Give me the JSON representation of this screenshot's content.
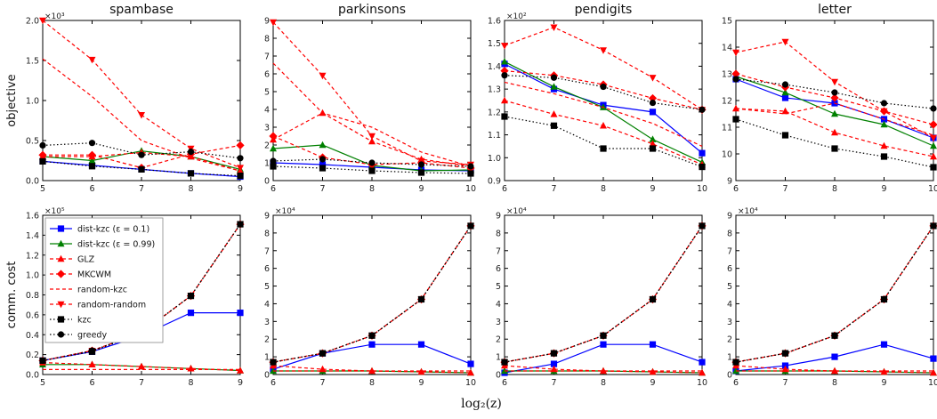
{
  "figure": {
    "xlabel": "log₂(z)",
    "row_labels": [
      "objective",
      "comm. cost"
    ]
  },
  "legend": {
    "entries": [
      {
        "key": "dist_kzc_01",
        "label": "dist-kzc (ε = 0.1)"
      },
      {
        "key": "dist_kzc_099",
        "label": "dist-kzc (ε = 0.99)"
      },
      {
        "key": "glz",
        "label": "GLZ"
      },
      {
        "key": "mkcwm",
        "label": "MKCWM"
      },
      {
        "key": "random_kzc",
        "label": "random-kzc"
      },
      {
        "key": "random_random",
        "label": "random-random"
      },
      {
        "key": "kzc",
        "label": "kzc"
      },
      {
        "key": "greedy",
        "label": "greedy"
      }
    ]
  },
  "series_style": {
    "dist_kzc_01": {
      "color": "#0000ff",
      "dash": "",
      "marker": "square"
    },
    "dist_kzc_099": {
      "color": "#008000",
      "dash": "",
      "marker": "triangle-up"
    },
    "glz": {
      "color": "#ff0000",
      "dash": "4,3",
      "marker": "triangle-up"
    },
    "mkcwm": {
      "color": "#ff0000",
      "dash": "4,3",
      "marker": "diamond"
    },
    "random_kzc": {
      "color": "#ff0000",
      "dash": "4,3",
      "marker": "none"
    },
    "random_random": {
      "color": "#ff0000",
      "dash": "4,3",
      "marker": "triangle-down"
    },
    "kzc": {
      "color": "#000000",
      "dash": "1.5,2.5",
      "marker": "square"
    },
    "greedy": {
      "color": "#000000",
      "dash": "1.5,2.5",
      "marker": "circle"
    }
  },
  "chart_data": [
    {
      "type": "line",
      "title": "spambase",
      "ylabel": "objective",
      "multiplier": "×10³",
      "x": [
        5,
        6,
        7,
        8,
        9
      ],
      "xlim": [
        5,
        9
      ],
      "xticks": [
        "5",
        "6",
        "7",
        "8",
        "9"
      ],
      "ylim": [
        0,
        2.0
      ],
      "yticks": [
        "0.0",
        "0.5",
        "1.0",
        "1.5",
        "2.0"
      ],
      "series": [
        {
          "key": "dist_kzc_01",
          "values": [
            0.24,
            0.19,
            0.14,
            0.09,
            0.05
          ]
        },
        {
          "key": "dist_kzc_099",
          "values": [
            0.3,
            0.25,
            0.37,
            0.3,
            0.14
          ]
        },
        {
          "key": "glz",
          "values": [
            0.3,
            0.3,
            0.35,
            0.3,
            0.12
          ]
        },
        {
          "key": "mkcwm",
          "values": [
            0.32,
            0.32,
            0.16,
            0.33,
            0.44
          ]
        },
        {
          "key": "random_kzc",
          "values": [
            1.52,
            1.05,
            0.5,
            0.28,
            0.12
          ]
        },
        {
          "key": "random_random",
          "values": [
            2.0,
            1.51,
            0.82,
            0.4,
            0.16
          ]
        },
        {
          "key": "kzc",
          "values": [
            0.24,
            0.18,
            0.14,
            0.09,
            0.06
          ]
        },
        {
          "key": "greedy",
          "values": [
            0.44,
            0.47,
            0.32,
            0.36,
            0.28
          ]
        }
      ]
    },
    {
      "type": "line",
      "title": "parkinsons",
      "ylabel": "",
      "multiplier": "",
      "x": [
        6,
        7,
        8,
        9,
        10
      ],
      "xlim": [
        6,
        10
      ],
      "xticks": [
        "6",
        "7",
        "8",
        "9",
        "10"
      ],
      "ylim": [
        0,
        9
      ],
      "yticks": [
        "0",
        "1",
        "2",
        "3",
        "4",
        "5",
        "6",
        "7",
        "8",
        "9"
      ],
      "series": [
        {
          "key": "dist_kzc_01",
          "values": [
            1.0,
            0.9,
            0.75,
            0.6,
            0.55
          ]
        },
        {
          "key": "dist_kzc_099",
          "values": [
            1.8,
            2.0,
            0.85,
            0.55,
            0.6
          ]
        },
        {
          "key": "glz",
          "values": [
            2.3,
            3.8,
            2.2,
            1.2,
            0.8
          ]
        },
        {
          "key": "mkcwm",
          "values": [
            2.5,
            1.3,
            0.9,
            1.0,
            0.7
          ]
        },
        {
          "key": "random_kzc",
          "values": [
            6.6,
            3.8,
            3.0,
            1.6,
            0.8
          ]
        },
        {
          "key": "random_random",
          "values": [
            8.9,
            5.9,
            2.5,
            1.1,
            0.9
          ]
        },
        {
          "key": "kzc",
          "values": [
            0.8,
            0.7,
            0.55,
            0.45,
            0.4
          ]
        },
        {
          "key": "greedy",
          "values": [
            1.1,
            1.2,
            1.0,
            0.9,
            0.8
          ]
        }
      ]
    },
    {
      "type": "line",
      "title": "pendigits",
      "ylabel": "",
      "multiplier": "×10²",
      "x": [
        6,
        7,
        8,
        9,
        10
      ],
      "xlim": [
        6,
        10
      ],
      "xticks": [
        "6",
        "7",
        "8",
        "9",
        "10"
      ],
      "ylim": [
        0.9,
        1.6
      ],
      "yticks": [
        "0.9",
        "1.0",
        "1.1",
        "1.2",
        "1.3",
        "1.4",
        "1.5",
        "1.6"
      ],
      "series": [
        {
          "key": "dist_kzc_01",
          "values": [
            1.41,
            1.3,
            1.23,
            1.2,
            1.02
          ]
        },
        {
          "key": "dist_kzc_099",
          "values": [
            1.42,
            1.31,
            1.22,
            1.08,
            0.98
          ]
        },
        {
          "key": "glz",
          "values": [
            1.25,
            1.19,
            1.14,
            1.06,
            0.97
          ]
        },
        {
          "key": "mkcwm",
          "values": [
            1.38,
            1.36,
            1.32,
            1.26,
            1.21
          ]
        },
        {
          "key": "random_kzc",
          "values": [
            1.33,
            1.28,
            1.22,
            1.15,
            1.05
          ]
        },
        {
          "key": "random_random",
          "values": [
            1.49,
            1.57,
            1.47,
            1.35,
            1.21
          ]
        },
        {
          "key": "kzc",
          "values": [
            1.18,
            1.14,
            1.04,
            1.04,
            0.96
          ]
        },
        {
          "key": "greedy",
          "values": [
            1.36,
            1.35,
            1.31,
            1.24,
            1.21
          ]
        }
      ]
    },
    {
      "type": "line",
      "title": "letter",
      "ylabel": "",
      "multiplier": "",
      "x": [
        6,
        7,
        8,
        9,
        10
      ],
      "xlim": [
        6,
        10
      ],
      "xticks": [
        "6",
        "7",
        "8",
        "9",
        "10"
      ],
      "ylim": [
        9,
        15
      ],
      "yticks": [
        "9",
        "10",
        "11",
        "12",
        "13",
        "14",
        "15"
      ],
      "series": [
        {
          "key": "dist_kzc_01",
          "values": [
            12.8,
            12.1,
            11.9,
            11.3,
            10.6
          ]
        },
        {
          "key": "dist_kzc_099",
          "values": [
            12.9,
            12.3,
            11.5,
            11.1,
            10.3
          ]
        },
        {
          "key": "glz",
          "values": [
            11.7,
            11.6,
            10.8,
            10.3,
            9.9
          ]
        },
        {
          "key": "mkcwm",
          "values": [
            13.0,
            12.5,
            12.1,
            11.6,
            11.1
          ]
        },
        {
          "key": "random_kzc",
          "values": [
            11.7,
            11.5,
            11.9,
            11.3,
            10.7
          ]
        },
        {
          "key": "random_random",
          "values": [
            13.8,
            14.2,
            12.7,
            11.6,
            10.6
          ]
        },
        {
          "key": "kzc",
          "values": [
            11.3,
            10.7,
            10.2,
            9.9,
            9.5
          ]
        },
        {
          "key": "greedy",
          "values": [
            12.8,
            12.6,
            12.3,
            11.9,
            11.7
          ]
        }
      ]
    },
    {
      "type": "line",
      "title": "",
      "ylabel": "comm. cost",
      "multiplier": "×10⁵",
      "x": [
        5,
        6,
        7,
        8,
        9
      ],
      "xlim": [
        5,
        9
      ],
      "xticks": [
        "5",
        "6",
        "7",
        "8",
        "9"
      ],
      "ylim": [
        0,
        1.6
      ],
      "yticks": [
        "0.0",
        "0.2",
        "0.4",
        "0.6",
        "0.8",
        "1.0",
        "1.2",
        "1.4",
        "1.6"
      ],
      "series": [
        {
          "key": "dist_kzc_01",
          "values": [
            0.14,
            0.23,
            0.39,
            0.62,
            0.62
          ]
        },
        {
          "key": "dist_kzc_099",
          "values": [
            0.1,
            0.1,
            0.08,
            0.06,
            0.04
          ]
        },
        {
          "key": "glz",
          "values": [
            0.12,
            0.1,
            0.08,
            0.06,
            0.04
          ]
        },
        {
          "key": "mkcwm",
          "values": [
            0.14,
            0.24,
            0.42,
            0.79,
            1.51
          ]
        },
        {
          "key": "random_kzc",
          "values": [
            0.05,
            0.05,
            0.05,
            0.05,
            0.05
          ]
        },
        {
          "key": "random_random",
          "values": [
            0.14,
            0.24,
            0.42,
            0.79,
            1.51
          ]
        },
        {
          "key": "kzc",
          "values": [
            0.14,
            0.23,
            0.42,
            0.79,
            1.51
          ]
        },
        {
          "key": "greedy",
          "values": [
            0.14,
            0.24,
            0.42,
            0.79,
            1.51
          ]
        }
      ]
    },
    {
      "type": "line",
      "title": "",
      "ylabel": "",
      "multiplier": "×10⁴",
      "x": [
        6,
        7,
        8,
        9,
        10
      ],
      "xlim": [
        6,
        10
      ],
      "xticks": [
        "6",
        "7",
        "8",
        "9",
        "10"
      ],
      "ylim": [
        0,
        9
      ],
      "yticks": [
        "0",
        "1",
        "2",
        "3",
        "4",
        "5",
        "6",
        "7",
        "8",
        "9"
      ],
      "series": [
        {
          "key": "dist_kzc_01",
          "values": [
            0.3,
            1.2,
            1.7,
            1.7,
            0.6
          ]
        },
        {
          "key": "dist_kzc_099",
          "values": [
            0.2,
            0.2,
            0.2,
            0.15,
            0.1
          ]
        },
        {
          "key": "glz",
          "values": [
            0.5,
            0.3,
            0.2,
            0.15,
            0.1
          ]
        },
        {
          "key": "mkcwm",
          "values": [
            0.7,
            1.2,
            2.2,
            4.25,
            8.4
          ]
        },
        {
          "key": "random_kzc",
          "values": [
            0.2,
            0.2,
            0.2,
            0.2,
            0.2
          ]
        },
        {
          "key": "random_random",
          "values": [
            0.7,
            1.2,
            2.2,
            4.25,
            8.4
          ]
        },
        {
          "key": "kzc",
          "values": [
            0.7,
            1.2,
            2.2,
            4.25,
            8.4
          ]
        },
        {
          "key": "greedy",
          "values": [
            0.7,
            1.2,
            2.2,
            4.25,
            8.4
          ]
        }
      ]
    },
    {
      "type": "line",
      "title": "",
      "ylabel": "",
      "multiplier": "×10⁴",
      "x": [
        6,
        7,
        8,
        9,
        10
      ],
      "xlim": [
        6,
        10
      ],
      "xticks": [
        "6",
        "7",
        "8",
        "9",
        "10"
      ],
      "ylim": [
        0,
        9
      ],
      "yticks": [
        "0",
        "1",
        "2",
        "3",
        "4",
        "5",
        "6",
        "7",
        "8",
        "9"
      ],
      "series": [
        {
          "key": "dist_kzc_01",
          "values": [
            0.1,
            0.6,
            1.7,
            1.7,
            0.7
          ]
        },
        {
          "key": "dist_kzc_099",
          "values": [
            0.2,
            0.2,
            0.2,
            0.15,
            0.1
          ]
        },
        {
          "key": "glz",
          "values": [
            0.5,
            0.3,
            0.2,
            0.15,
            0.1
          ]
        },
        {
          "key": "mkcwm",
          "values": [
            0.7,
            1.2,
            2.2,
            4.25,
            8.4
          ]
        },
        {
          "key": "random_kzc",
          "values": [
            0.2,
            0.2,
            0.2,
            0.2,
            0.2
          ]
        },
        {
          "key": "random_random",
          "values": [
            0.7,
            1.2,
            2.2,
            4.25,
            8.4
          ]
        },
        {
          "key": "kzc",
          "values": [
            0.7,
            1.2,
            2.2,
            4.25,
            8.4
          ]
        },
        {
          "key": "greedy",
          "values": [
            0.7,
            1.2,
            2.2,
            4.25,
            8.4
          ]
        }
      ]
    },
    {
      "type": "line",
      "title": "",
      "ylabel": "",
      "multiplier": "×10⁴",
      "x": [
        6,
        7,
        8,
        9,
        10
      ],
      "xlim": [
        6,
        10
      ],
      "xticks": [
        "6",
        "7",
        "8",
        "9",
        "10"
      ],
      "ylim": [
        0,
        9
      ],
      "yticks": [
        "0",
        "1",
        "2",
        "3",
        "4",
        "5",
        "6",
        "7",
        "8",
        "9"
      ],
      "series": [
        {
          "key": "dist_kzc_01",
          "values": [
            0.2,
            0.5,
            1.0,
            1.7,
            0.9
          ]
        },
        {
          "key": "dist_kzc_099",
          "values": [
            0.2,
            0.2,
            0.2,
            0.15,
            0.1
          ]
        },
        {
          "key": "glz",
          "values": [
            0.5,
            0.3,
            0.2,
            0.15,
            0.1
          ]
        },
        {
          "key": "mkcwm",
          "values": [
            0.7,
            1.2,
            2.2,
            4.25,
            8.4
          ]
        },
        {
          "key": "random_kzc",
          "values": [
            0.2,
            0.2,
            0.2,
            0.2,
            0.2
          ]
        },
        {
          "key": "random_random",
          "values": [
            0.7,
            1.2,
            2.2,
            4.25,
            8.4
          ]
        },
        {
          "key": "kzc",
          "values": [
            0.7,
            1.2,
            2.2,
            4.25,
            8.4
          ]
        },
        {
          "key": "greedy",
          "values": [
            0.7,
            1.2,
            2.2,
            4.25,
            8.4
          ]
        }
      ]
    }
  ]
}
